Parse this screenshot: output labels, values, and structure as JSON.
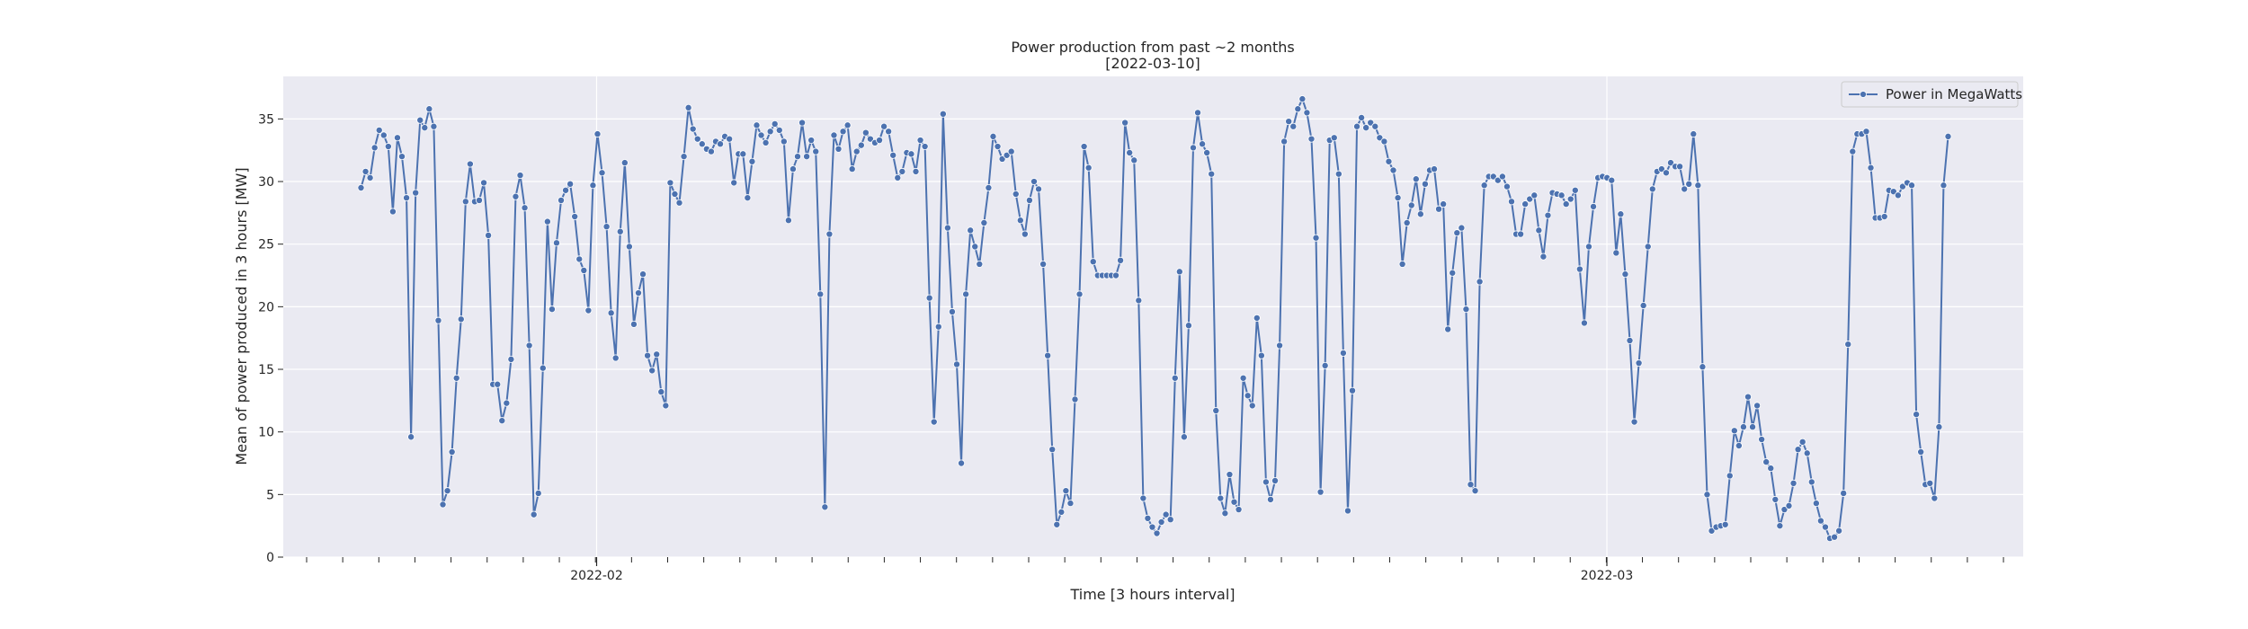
{
  "chart_data": {
    "type": "line",
    "title": "Power production from past ~2 months",
    "subtitle": "[2022-03-10]",
    "xlabel": "Time [3 hours interval]",
    "ylabel": "Mean of power produced in 3 hours [MW]",
    "ylim": [
      0,
      38.4
    ],
    "yticks": [
      0,
      5,
      10,
      15,
      20,
      25,
      30,
      35
    ],
    "xticks": [
      "2022-02",
      "2022-03"
    ],
    "grid": true,
    "legend_position": "top-right",
    "colors": {
      "line": "#4c72b0",
      "plot_bg": "#eaeaf2",
      "grid": "#ffffff"
    },
    "series": [
      {
        "name": "Power in MegaWatts",
        "values": [
          29.5,
          30.8,
          30.3,
          32.7,
          34.1,
          33.7,
          32.8,
          27.6,
          33.5,
          32.0,
          28.7,
          9.6,
          29.1,
          34.9,
          34.3,
          35.8,
          34.4,
          18.9,
          4.2,
          5.3,
          8.4,
          14.3,
          19.0,
          28.4,
          31.4,
          28.4,
          28.5,
          29.9,
          25.7,
          13.8,
          13.8,
          10.9,
          12.3,
          15.8,
          28.8,
          30.5,
          27.9,
          16.9,
          3.4,
          5.1,
          15.1,
          26.8,
          19.8,
          25.1,
          28.5,
          29.3,
          29.8,
          27.2,
          23.8,
          22.9,
          19.7,
          29.7,
          33.8,
          30.7,
          26.4,
          19.5,
          15.9,
          26.0,
          31.5,
          24.8,
          18.6,
          21.1,
          22.6,
          16.1,
          14.9,
          16.2,
          13.2,
          12.1,
          29.9,
          29.0,
          28.3,
          32.0,
          35.9,
          34.2,
          33.4,
          33.0,
          32.6,
          32.4,
          33.2,
          33.0,
          33.6,
          33.4,
          29.9,
          32.2,
          32.2,
          28.7,
          31.6,
          34.5,
          33.7,
          33.1,
          34.0,
          34.6,
          34.1,
          33.2,
          26.9,
          31.0,
          32.0,
          34.7,
          32.0,
          33.3,
          32.4,
          21.0,
          4.0,
          25.8,
          33.7,
          32.6,
          34.0,
          34.5,
          31.0,
          32.4,
          32.9,
          33.9,
          33.4,
          33.1,
          33.3,
          34.4,
          34.0,
          32.1,
          30.3,
          30.8,
          32.3,
          32.2,
          30.8,
          33.3,
          32.8,
          20.7,
          10.8,
          18.4,
          35.4,
          26.3,
          19.6,
          15.4,
          7.5,
          21.0,
          26.1,
          24.8,
          23.4,
          26.7,
          29.5,
          33.6,
          32.8,
          31.8,
          32.1,
          32.4,
          29.0,
          26.9,
          25.8,
          28.5,
          30.0,
          29.4,
          23.4,
          16.1,
          8.6,
          2.6,
          3.6,
          5.3,
          4.3,
          12.6,
          21.0,
          32.8,
          31.1,
          23.6,
          22.5,
          22.5,
          22.5,
          22.5,
          22.5,
          23.7,
          34.7,
          32.3,
          31.7,
          20.5,
          4.7,
          3.1,
          2.4,
          1.9,
          2.8,
          3.4,
          3.0,
          14.3,
          22.8,
          9.6,
          18.5,
          32.7,
          35.5,
          33.0,
          32.3,
          30.6,
          11.7,
          4.7,
          3.5,
          6.6,
          4.4,
          3.8,
          14.3,
          12.9,
          12.1,
          19.1,
          16.1,
          6.0,
          4.6,
          6.1,
          16.9,
          33.2,
          34.8,
          34.4,
          35.8,
          36.6,
          35.5,
          33.4,
          25.5,
          5.2,
          15.3,
          33.3,
          33.5,
          30.6,
          16.3,
          3.7,
          13.3,
          34.4,
          35.1,
          34.3,
          34.7,
          34.4,
          33.5,
          33.2,
          31.6,
          30.9,
          28.7,
          23.4,
          26.7,
          28.1,
          30.2,
          27.4,
          29.8,
          30.9,
          31.0,
          27.8,
          28.2,
          18.2,
          22.7,
          25.9,
          26.3,
          19.8,
          5.8,
          5.3,
          22.0,
          29.7,
          30.4,
          30.4,
          30.1,
          30.4,
          29.6,
          28.4,
          25.8,
          25.8,
          28.2,
          28.6,
          28.9,
          26.1,
          24.0,
          27.3,
          29.1,
          29.0,
          28.9,
          28.2,
          28.6,
          29.3,
          23.0,
          18.7,
          24.8,
          28.0,
          30.3,
          30.4,
          30.3,
          30.1,
          24.3,
          27.4,
          22.6,
          17.3,
          10.8,
          15.5,
          20.1,
          24.8,
          29.4,
          30.8,
          31.0,
          30.7,
          31.5,
          31.2,
          31.2,
          29.4,
          29.8,
          33.8,
          29.7,
          15.2,
          5.0,
          2.1,
          2.4,
          2.5,
          2.6,
          6.5,
          10.1,
          8.9,
          10.4,
          12.8,
          10.4,
          12.1,
          9.4,
          7.6,
          7.1,
          4.6,
          2.5,
          3.8,
          4.1,
          5.9,
          8.6,
          9.2,
          8.3,
          6.0,
          4.3,
          2.9,
          2.4,
          1.5,
          1.6,
          2.1,
          5.1,
          17.0,
          32.4,
          33.8,
          33.8,
          34.0,
          31.1,
          27.1,
          27.1,
          27.2,
          29.3,
          29.2,
          28.9,
          29.6,
          29.9,
          29.7,
          11.4,
          8.4,
          5.8,
          5.9,
          4.7,
          10.4,
          29.7,
          33.6
        ]
      }
    ]
  }
}
